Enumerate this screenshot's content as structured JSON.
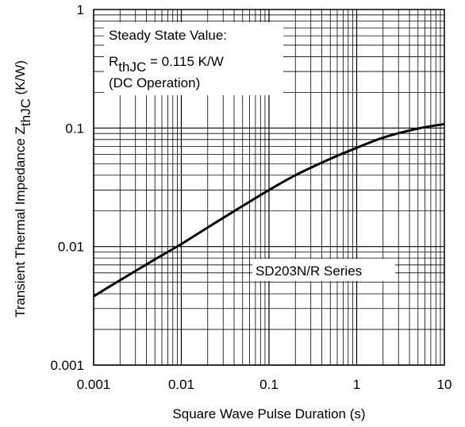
{
  "chart_data": {
    "type": "line",
    "x_scale": "log",
    "y_scale": "log",
    "xlim": [
      0.001,
      10
    ],
    "ylim": [
      0.001,
      1
    ],
    "grid": true,
    "xlabel": "Square Wave Pulse Duration (s)",
    "ylabel": {
      "main": "Transient Thermal Impedance Z",
      "sub": "thJC",
      "unit": " (K/W)"
    },
    "x_ticks": [
      "0.001",
      "0.01",
      "0.1",
      "1",
      "10"
    ],
    "y_ticks": [
      "0.001",
      "0.01",
      "0.1",
      "1"
    ],
    "series": [
      {
        "name": "SD203N/R Series",
        "x": [
          0.001,
          0.002,
          0.005,
          0.01,
          0.02,
          0.05,
          0.1,
          0.2,
          0.5,
          1,
          2,
          5,
          10
        ],
        "y": [
          0.0038,
          0.0052,
          0.0078,
          0.0105,
          0.0145,
          0.022,
          0.03,
          0.04,
          0.055,
          0.068,
          0.083,
          0.099,
          0.108
        ]
      }
    ],
    "annotations": {
      "steady_line1": "Steady State Value:",
      "steady_r": "R",
      "steady_sub": "thJC",
      "steady_value": " = 0.115 K/W",
      "steady_line3": "(DC Operation)",
      "series_label": "SD203N/R Series"
    }
  }
}
